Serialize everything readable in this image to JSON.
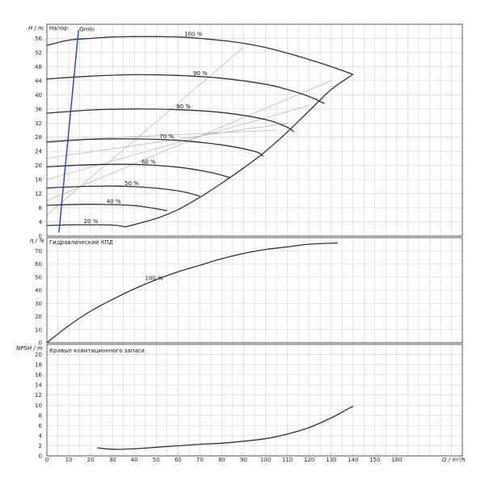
{
  "chart_data": [
    {
      "type": "line",
      "title": "Напор",
      "ylabel": "H / m",
      "xlim": [
        0,
        190
      ],
      "ylim": [
        0,
        60
      ],
      "yticks": [
        0,
        4,
        8,
        12,
        16,
        20,
        24,
        28,
        32,
        36,
        40,
        44,
        48,
        52,
        56
      ],
      "grid": true,
      "series": [
        {
          "name": "100 %",
          "x": [
            0,
            10,
            20,
            30,
            40,
            50,
            60,
            70,
            80,
            90,
            100,
            110,
            120,
            130,
            140
          ],
          "y": [
            54,
            55.5,
            56,
            56.4,
            56.5,
            56.5,
            56.4,
            56,
            55.4,
            54.6,
            53.4,
            51.8,
            50,
            48,
            45.8
          ]
        },
        {
          "name": "90 %",
          "x": [
            0,
            20,
            40,
            60,
            80,
            100,
            110,
            120,
            127
          ],
          "y": [
            44.5,
            45.3,
            45.7,
            45.5,
            44.7,
            43,
            41.5,
            39.5,
            37.5
          ]
        },
        {
          "name": "80 %",
          "x": [
            0,
            20,
            40,
            60,
            80,
            100,
            110,
            113
          ],
          "y": [
            34.8,
            35.7,
            36,
            35.8,
            35,
            33,
            30.8,
            29.5
          ]
        },
        {
          "name": "70 %",
          "x": [
            0,
            20,
            40,
            60,
            80,
            95,
            99
          ],
          "y": [
            26.6,
            27.4,
            27.5,
            27.1,
            25.8,
            24,
            22.6
          ]
        },
        {
          "name": "60 %",
          "x": [
            0,
            20,
            40,
            60,
            75,
            84
          ],
          "y": [
            19.6,
            20.2,
            20.3,
            19.5,
            18,
            16.5
          ]
        },
        {
          "name": "50 %",
          "x": [
            0,
            20,
            40,
            60,
            70
          ],
          "y": [
            13.6,
            14.1,
            14,
            12.8,
            11.3
          ]
        },
        {
          "name": "40 %",
          "x": [
            0,
            20,
            40,
            55
          ],
          "y": [
            8.7,
            9,
            8.6,
            7.2
          ]
        },
        {
          "name": "20 %",
          "x": [
            0,
            15,
            30,
            36
          ],
          "y": [
            3,
            3.2,
            3.1,
            2.6
          ]
        },
        {
          "name": "",
          "x": [
            36,
            50,
            60,
            70,
            80,
            90,
            100,
            110,
            120,
            130,
            140
          ],
          "y": [
            2.6,
            5,
            7.5,
            11,
            15,
            19.3,
            24,
            29.5,
            35.5,
            41.5,
            45.8
          ]
        },
        {
          "name": "Qmin",
          "x": [
            5.5,
            14.5
          ],
          "y": [
            1,
            58.5
          ]
        }
      ],
      "efficiency_lines": [
        {
          "x": [
            0,
            90
          ],
          "y": [
            6,
            53.5
          ]
        },
        {
          "x": [
            0,
            130
          ],
          "y": [
            10,
            44
          ]
        },
        {
          "x": [
            0,
            120
          ],
          "y": [
            16,
            37
          ]
        },
        {
          "x": [
            0,
            110
          ],
          "y": [
            22,
            32
          ]
        },
        {
          "x": [
            0,
            105
          ],
          "y": [
            27,
            30
          ]
        }
      ]
    },
    {
      "type": "line",
      "title": "Гидравлический КПД",
      "ylabel": "η / %",
      "xlim": [
        0,
        190
      ],
      "ylim": [
        0,
        80
      ],
      "yticks": [
        0,
        10,
        20,
        30,
        40,
        50,
        60,
        70
      ],
      "grid": true,
      "series": [
        {
          "name": "100 %",
          "x": [
            0,
            10,
            20,
            30,
            40,
            50,
            60,
            70,
            80,
            90,
            100,
            110,
            120,
            133
          ],
          "y": [
            0,
            13,
            24,
            33,
            41,
            48,
            54,
            59,
            64,
            68,
            71,
            73,
            75,
            76
          ]
        }
      ]
    },
    {
      "type": "line",
      "title": "Кривые кавитационного запаса",
      "ylabel": "NPSH / m",
      "xlabel": "Q / m³/h",
      "xlim": [
        0,
        190
      ],
      "ylim": [
        0,
        22
      ],
      "xticks": [
        0,
        10,
        20,
        30,
        40,
        50,
        60,
        70,
        80,
        90,
        100,
        110,
        120,
        130,
        140,
        150,
        160
      ],
      "yticks": [
        0,
        2,
        4,
        6,
        8,
        10,
        12,
        14,
        16,
        18,
        20
      ],
      "grid": true,
      "series": [
        {
          "name": "",
          "x": [
            23,
            30,
            40,
            50,
            60,
            70,
            80,
            90,
            100,
            110,
            120,
            130,
            140
          ],
          "y": [
            1.6,
            1.3,
            1.4,
            1.7,
            2,
            2.3,
            2.5,
            2.9,
            3.4,
            4.3,
            5.6,
            7.5,
            9.8
          ]
        }
      ]
    }
  ]
}
